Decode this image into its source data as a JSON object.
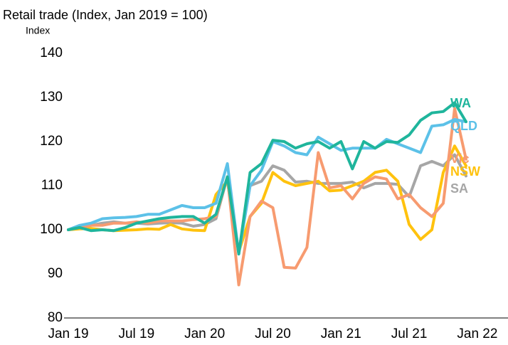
{
  "chart_data": {
    "type": "line",
    "title": "Retail trade (Index, Jan 2019 = 100)",
    "y_label": "Index",
    "categories": [
      "Jan 19",
      null,
      null,
      null,
      null,
      null,
      "Jul 19",
      null,
      null,
      null,
      null,
      null,
      "Jan 20",
      null,
      null,
      null,
      null,
      null,
      "Jul 20",
      null,
      null,
      null,
      null,
      null,
      "Jan 21",
      null,
      null,
      null,
      null,
      null,
      "Jul 21",
      null,
      null,
      null,
      null,
      null,
      "Jan 22"
    ],
    "series": [
      {
        "name": "WA",
        "color": "#1fb59c",
        "values": [
          100,
          100.5,
          99.8,
          100,
          99.8,
          100.5,
          101.5,
          102,
          102.5,
          102.8,
          103,
          103,
          101.5,
          103.5,
          112,
          94.5,
          113,
          115,
          120.3,
          120,
          118.5,
          119.5,
          120,
          118.5,
          120,
          113.8,
          120,
          118.5,
          120,
          119.8,
          121.5,
          124.8,
          126.5,
          126.8,
          128.8,
          124.5,
          null
        ]
      },
      {
        "name": "QLD",
        "color": "#5cc1e8",
        "values": [
          100,
          101,
          101.5,
          102.5,
          102.7,
          102.8,
          103,
          103.5,
          103.5,
          104.5,
          105.5,
          105,
          105,
          106,
          115,
          94.5,
          110,
          113.5,
          120,
          119,
          117.5,
          117,
          121,
          119.5,
          118,
          118.5,
          118.5,
          118.5,
          120.5,
          119.5,
          118.5,
          117.5,
          123.5,
          123.8,
          125,
          124.5,
          null
        ]
      },
      {
        "name": "Vic",
        "color": "#f79b70",
        "values": [
          100,
          100.5,
          101,
          101,
          101.5,
          101.5,
          101.8,
          101.5,
          102,
          102,
          102,
          102.3,
          102.5,
          103,
          112,
          87.5,
          103,
          106.5,
          105,
          91.5,
          91.3,
          96,
          117.5,
          109.5,
          110,
          107,
          110.5,
          112,
          111.5,
          107,
          108,
          105,
          103,
          106,
          127.5,
          116,
          null
        ]
      },
      {
        "name": "NSW",
        "color": "#ffc20e",
        "values": [
          100,
          100.2,
          100.3,
          100,
          99.8,
          99.9,
          100,
          100.2,
          100.1,
          101.2,
          100.2,
          99.9,
          99.8,
          108,
          111,
          95,
          103,
          106,
          113,
          111,
          110,
          110.5,
          111,
          108.8,
          109,
          110,
          111,
          113,
          113.5,
          111,
          101.2,
          97.8,
          100,
          113,
          119,
          114.5,
          null
        ]
      },
      {
        "name": "SA",
        "color": "#a6a6a6",
        "values": [
          100,
          100.5,
          101,
          101.5,
          101.8,
          101.5,
          101.5,
          101.3,
          101.5,
          101.6,
          101.5,
          100.8,
          101.2,
          102.5,
          112,
          95,
          110,
          111,
          114.5,
          113.5,
          110.8,
          111,
          110.5,
          110.5,
          110.5,
          110.8,
          109.5,
          110.5,
          110.5,
          110.3,
          107.5,
          114.5,
          115.5,
          114.5,
          117,
          112.2,
          null
        ]
      }
    ],
    "ylim": [
      80,
      140
    ],
    "yticks": [
      80,
      90,
      100,
      110,
      120,
      130,
      140
    ]
  }
}
